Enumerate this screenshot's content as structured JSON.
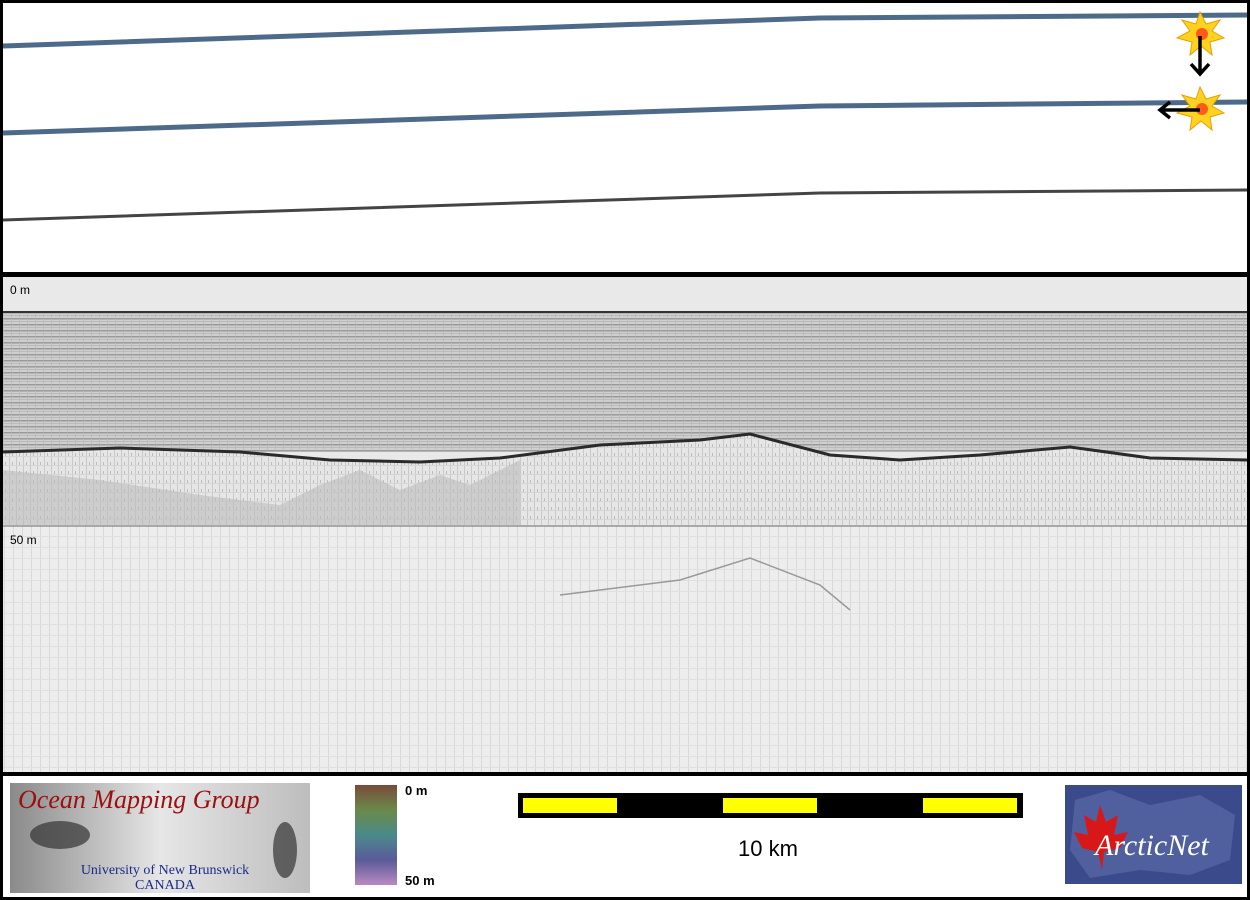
{
  "profile": {
    "depth_labels": [
      "0 m",
      "50 m"
    ]
  },
  "legend": {
    "color_top": "0 m",
    "color_bottom": "50 m",
    "scale": "10 km"
  },
  "logos": {
    "omg_title": "Ocean Mapping Group",
    "omg_university": "University of New Brunswick",
    "omg_country": "CANADA",
    "arcticnet": "ArcticNet"
  }
}
